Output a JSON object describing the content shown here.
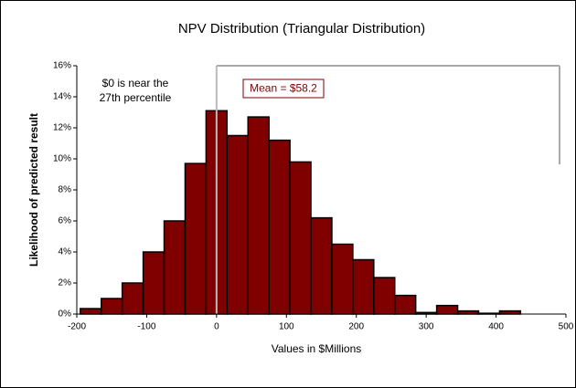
{
  "chart_data": {
    "type": "histogram",
    "title": "NPV Distribution (Triangular Distribution)",
    "x_label": "Values in $Millions",
    "y_label": "Likelihood of predicted result",
    "annotations": [
      "$0 is near the",
      "27th percentile",
      "Mean = $58.2"
    ],
    "bins": [
      -195,
      -165,
      -135,
      -105,
      -75,
      -45,
      -15,
      15,
      45,
      75,
      105,
      135,
      165,
      195,
      225,
      255,
      285,
      315,
      345,
      375,
      405,
      435
    ],
    "values": [
      0.35,
      1.0,
      2.0,
      4.0,
      6.0,
      9.7,
      13.1,
      11.5,
      12.7,
      11.2,
      9.8,
      6.2,
      4.5,
      3.5,
      2.35,
      1.2,
      0.1,
      0.55,
      0.2,
      0.05,
      0.2
    ],
    "color": "#800000",
    "xlim": [
      -200,
      500
    ],
    "xticks": [
      -200,
      -100,
      0,
      100,
      200,
      300,
      400,
      500
    ],
    "ylim": [
      0,
      16
    ],
    "yticks": [
      {
        "value": 0,
        "label": "0%"
      },
      {
        "value": 2,
        "label": "2%"
      },
      {
        "value": 4,
        "label": "4%"
      },
      {
        "value": 6,
        "label": "6%"
      },
      {
        "value": 8,
        "label": "8%"
      },
      {
        "value": 10,
        "label": "10%"
      },
      {
        "value": 12,
        "label": "12%"
      },
      {
        "value": 14,
        "label": "14%"
      },
      {
        "value": 16,
        "label": "16%"
      }
    ]
  }
}
